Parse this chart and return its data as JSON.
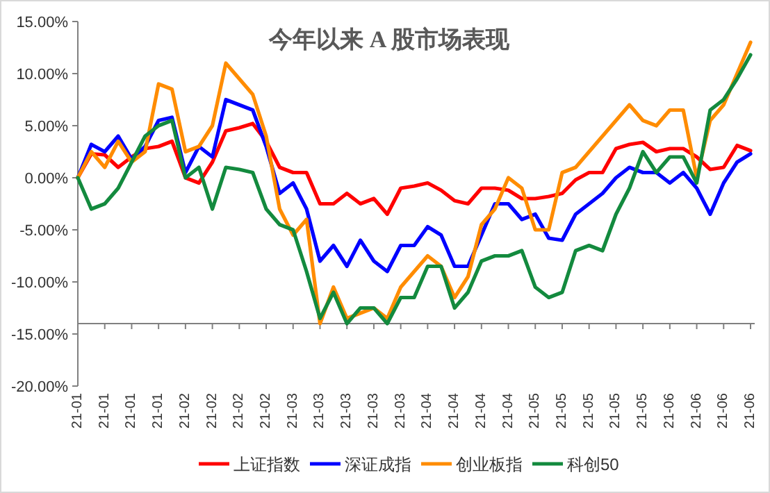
{
  "chart_data": {
    "type": "line",
    "title": "今年以来 A 股市场表现",
    "categories": [
      "21-01",
      null,
      "21-01",
      null,
      "21-01",
      null,
      "21-01",
      null,
      "21-02",
      null,
      "21-02",
      null,
      "21-02",
      null,
      "21-02",
      null,
      "21-03",
      null,
      "21-03",
      null,
      "21-03",
      null,
      "21-03",
      null,
      "21-03",
      null,
      "21-04",
      null,
      "21-04",
      null,
      "21-04",
      null,
      "21-04",
      null,
      "21-05",
      null,
      "21-05",
      null,
      "21-05",
      null,
      "21-05",
      null,
      "21-05",
      null,
      "21-06",
      null,
      "21-06",
      null,
      "21-06",
      null,
      "21-06"
    ],
    "series": [
      {
        "name": "上证指数",
        "color": "#ff0000",
        "values": [
          0,
          2.3,
          2.2,
          1.0,
          2.0,
          2.8,
          3.0,
          3.5,
          0,
          -0.5,
          1.5,
          4.5,
          4.8,
          5.2,
          3.5,
          1.0,
          0.5,
          0.5,
          -2.5,
          -2.5,
          -1.5,
          -2.5,
          -2.0,
          -3.5,
          -1.0,
          -0.8,
          -0.5,
          -1.2,
          -2.2,
          -2.5,
          -1.0,
          -1.0,
          -1.2,
          -2.0,
          -2.0,
          -1.8,
          -1.5,
          -0.2,
          0.5,
          0.5,
          2.8,
          3.2,
          3.4,
          2.5,
          2.8,
          2.8,
          2.0,
          0.8,
          1.0,
          3.1,
          2.6
        ]
      },
      {
        "name": "深证成指",
        "color": "#0000ff",
        "values": [
          0,
          3.2,
          2.5,
          4.0,
          1.8,
          3.0,
          5.5,
          5.8,
          0.5,
          3.0,
          2.0,
          7.5,
          7.0,
          6.5,
          3.0,
          -1.5,
          -0.5,
          -3.0,
          -8.0,
          -6.5,
          -8.5,
          -6.0,
          -8.0,
          -9.0,
          -6.5,
          -6.5,
          -4.7,
          -5.5,
          -8.5,
          -8.5,
          -5.5,
          -2.5,
          -2.5,
          -4.0,
          -3.5,
          -5.8,
          -6.0,
          -3.5,
          -2.5,
          -1.5,
          0,
          1.0,
          0.5,
          0.5,
          -0.5,
          0.5,
          -1.0,
          -3.5,
          -0.5,
          1.5,
          2.3
        ]
      },
      {
        "name": "创业板指",
        "color": "#ff8c00",
        "values": [
          0,
          2.5,
          1.0,
          3.5,
          1.5,
          2.5,
          9.0,
          8.5,
          2.5,
          3.0,
          5.0,
          11.0,
          9.5,
          8.0,
          4.0,
          -3.0,
          -5.5,
          -4.0,
          -14.0,
          -10.5,
          -13.5,
          -13.0,
          -12.5,
          -13.5,
          -10.5,
          -9.0,
          -7.5,
          -8.5,
          -11.5,
          -9.5,
          -4.5,
          -3.0,
          0,
          -1.0,
          -5.0,
          -5.0,
          0.5,
          1.0,
          2.5,
          4.0,
          5.5,
          7.0,
          5.5,
          5.0,
          6.5,
          6.5,
          0,
          5.5,
          7.0,
          10.0,
          13.0
        ]
      },
      {
        "name": "科创50",
        "color": "#138a3e",
        "values": [
          0,
          -3.0,
          -2.5,
          -1.0,
          1.5,
          4.0,
          5.0,
          5.5,
          0,
          1.0,
          -3.0,
          1.0,
          0.8,
          0.5,
          -3.0,
          -4.5,
          -5.0,
          -9.0,
          -13.5,
          -11.0,
          -14.0,
          -12.5,
          -12.5,
          -14.0,
          -11.5,
          -11.5,
          -8.5,
          -8.5,
          -12.5,
          -11.0,
          -8.0,
          -7.5,
          -7.5,
          -7.0,
          -10.5,
          -11.5,
          -11.0,
          -7.0,
          -6.5,
          -7.0,
          -3.5,
          -1.0,
          2.5,
          0.5,
          2.0,
          2.0,
          -0.5,
          6.5,
          7.5,
          9.5,
          11.8
        ]
      }
    ],
    "ylim": [
      -20,
      15
    ],
    "yticks": [
      {
        "value": -20,
        "label": "-20.00%"
      },
      {
        "value": -15,
        "label": "-15.00%"
      },
      {
        "value": -10,
        "label": "-10.00%"
      },
      {
        "value": -5,
        "label": "-5.00%"
      },
      {
        "value": 0,
        "label": "0.00%"
      },
      {
        "value": 5,
        "label": "5.00%"
      },
      {
        "value": 10,
        "label": "10.00%"
      },
      {
        "value": 15,
        "label": "15.00%"
      }
    ],
    "ref_lines": [
      {
        "axis": "y",
        "value": -14,
        "color": "#808080"
      }
    ],
    "grid": false,
    "legend": "bottom",
    "marker": "none",
    "line_style": "solid"
  }
}
